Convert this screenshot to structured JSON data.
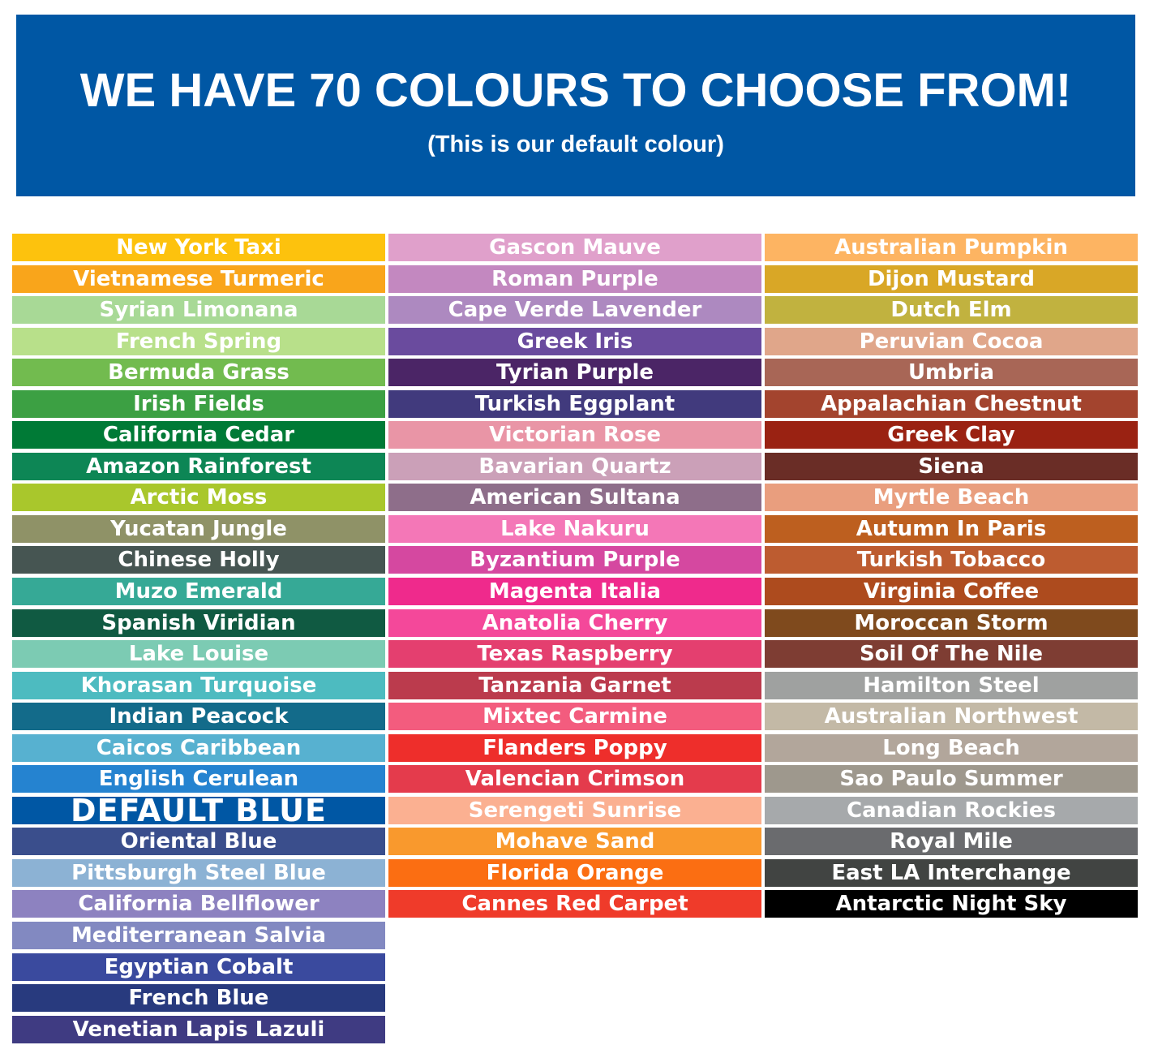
{
  "header": {
    "title": "WE HAVE 70 COLOURS TO CHOOSE FROM!",
    "subtitle": "(This is our default colour)",
    "background_color": "#0057a4"
  },
  "columns": [
    [
      {
        "name": "New York Taxi",
        "color": "#fdc20d"
      },
      {
        "name": "Vietnamese Turmeric",
        "color": "#f9a51b"
      },
      {
        "name": "Syrian Limonana",
        "color": "#a8d996"
      },
      {
        "name": "French Spring",
        "color": "#b8e08a"
      },
      {
        "name": "Bermuda Grass",
        "color": "#72bb4f"
      },
      {
        "name": "Irish Fields",
        "color": "#3ca043"
      },
      {
        "name": "California Cedar",
        "color": "#007a36"
      },
      {
        "name": "Amazon Rainforest",
        "color": "#0d8655"
      },
      {
        "name": "Arctic Moss",
        "color": "#a9c72c"
      },
      {
        "name": "Yucatan Jungle",
        "color": "#8f9267"
      },
      {
        "name": "Chinese Holly",
        "color": "#465552"
      },
      {
        "name": "Muzo Emerald",
        "color": "#36a996"
      },
      {
        "name": "Spanish Viridian",
        "color": "#105a42"
      },
      {
        "name": "Lake Louise",
        "color": "#7ccbb3"
      },
      {
        "name": "Khorasan Turquoise",
        "color": "#4dbbc0"
      },
      {
        "name": "Indian Peacock",
        "color": "#136b8a"
      },
      {
        "name": "Caicos Caribbean",
        "color": "#57b1d0"
      },
      {
        "name": "English Cerulean",
        "color": "#2583d0"
      },
      {
        "name": "DEFAULT BLUE",
        "color": "#0057a4",
        "highlight": true
      },
      {
        "name": "Oriental Blue",
        "color": "#3a4e8c"
      },
      {
        "name": "Pittsburgh Steel Blue",
        "color": "#8cb2d4"
      },
      {
        "name": "California Bellflower",
        "color": "#8d82c0"
      },
      {
        "name": "Mediterranean Salvia",
        "color": "#8289c1"
      },
      {
        "name": "Egyptian Cobalt",
        "color": "#3a4a9e"
      },
      {
        "name": "French Blue",
        "color": "#283a7e"
      },
      {
        "name": "Venetian Lapis Lazuli",
        "color": "#3f3b82"
      }
    ],
    [
      {
        "name": "Gascon Mauve",
        "color": "#e0a0cb"
      },
      {
        "name": "Roman Purple",
        "color": "#c388c0"
      },
      {
        "name": "Cape Verde Lavender",
        "color": "#ad89c0"
      },
      {
        "name": "Greek Iris",
        "color": "#6a4b9e"
      },
      {
        "name": "Tyrian Purple",
        "color": "#4b2566"
      },
      {
        "name": "Turkish Eggplant",
        "color": "#413a7d"
      },
      {
        "name": "Victorian Rose",
        "color": "#e995a6"
      },
      {
        "name": "Bavarian Quartz",
        "color": "#cba0b8"
      },
      {
        "name": "American Sultana",
        "color": "#8e6e8a"
      },
      {
        "name": "Lake Nakuru",
        "color": "#f477b7"
      },
      {
        "name": "Byzantium Purple",
        "color": "#d548a0"
      },
      {
        "name": "Magenta Italia",
        "color": "#ef2a8c"
      },
      {
        "name": "Anatolia Cherry",
        "color": "#f4489a"
      },
      {
        "name": "Texas Raspberry",
        "color": "#e43f6f"
      },
      {
        "name": "Tanzania Garnet",
        "color": "#bb3b4d"
      },
      {
        "name": "Mixtec Carmine",
        "color": "#f35c7e"
      },
      {
        "name": "Flanders Poppy",
        "color": "#ee2e2b"
      },
      {
        "name": "Valencian Crimson",
        "color": "#e43b4c"
      },
      {
        "name": "Serengeti Sunrise",
        "color": "#fbb091"
      },
      {
        "name": "Mohave Sand",
        "color": "#f9992d"
      },
      {
        "name": "Florida Orange",
        "color": "#fb6e12"
      },
      {
        "name": "Cannes Red Carpet",
        "color": "#ef3b2a"
      }
    ],
    [
      {
        "name": "Australian Pumpkin",
        "color": "#fdb462"
      },
      {
        "name": "Dijon Mustard",
        "color": "#d9a726"
      },
      {
        "name": "Dutch Elm",
        "color": "#c1b23f"
      },
      {
        "name": "Peruvian Cocoa",
        "color": "#e0a68a"
      },
      {
        "name": "Umbria",
        "color": "#a86656"
      },
      {
        "name": "Appalachian Chestnut",
        "color": "#a3442e"
      },
      {
        "name": "Greek Clay",
        "color": "#9a2212"
      },
      {
        "name": "Siena",
        "color": "#6a2d26"
      },
      {
        "name": "Myrtle Beach",
        "color": "#e99e7e"
      },
      {
        "name": "Autumn In Paris",
        "color": "#bd5f1f"
      },
      {
        "name": "Turkish Tobacco",
        "color": "#bd5c30"
      },
      {
        "name": "Virginia Coffee",
        "color": "#ad4b1e"
      },
      {
        "name": "Moroccan Storm",
        "color": "#7f4a1d"
      },
      {
        "name": "Soil Of The Nile",
        "color": "#7e3d33"
      },
      {
        "name": "Hamilton Steel",
        "color": "#9fa1a0"
      },
      {
        "name": "Australian Northwest",
        "color": "#c3b9a6"
      },
      {
        "name": "Long Beach",
        "color": "#b2a69b"
      },
      {
        "name": "Sao Paulo Summer",
        "color": "#9e988d"
      },
      {
        "name": "Canadian Rockies",
        "color": "#a6a9ab"
      },
      {
        "name": "Royal Mile",
        "color": "#6a6b6e"
      },
      {
        "name": "East LA Interchange",
        "color": "#414442"
      },
      {
        "name": "Antarctic Night Sky",
        "color": "#000000"
      }
    ]
  ]
}
